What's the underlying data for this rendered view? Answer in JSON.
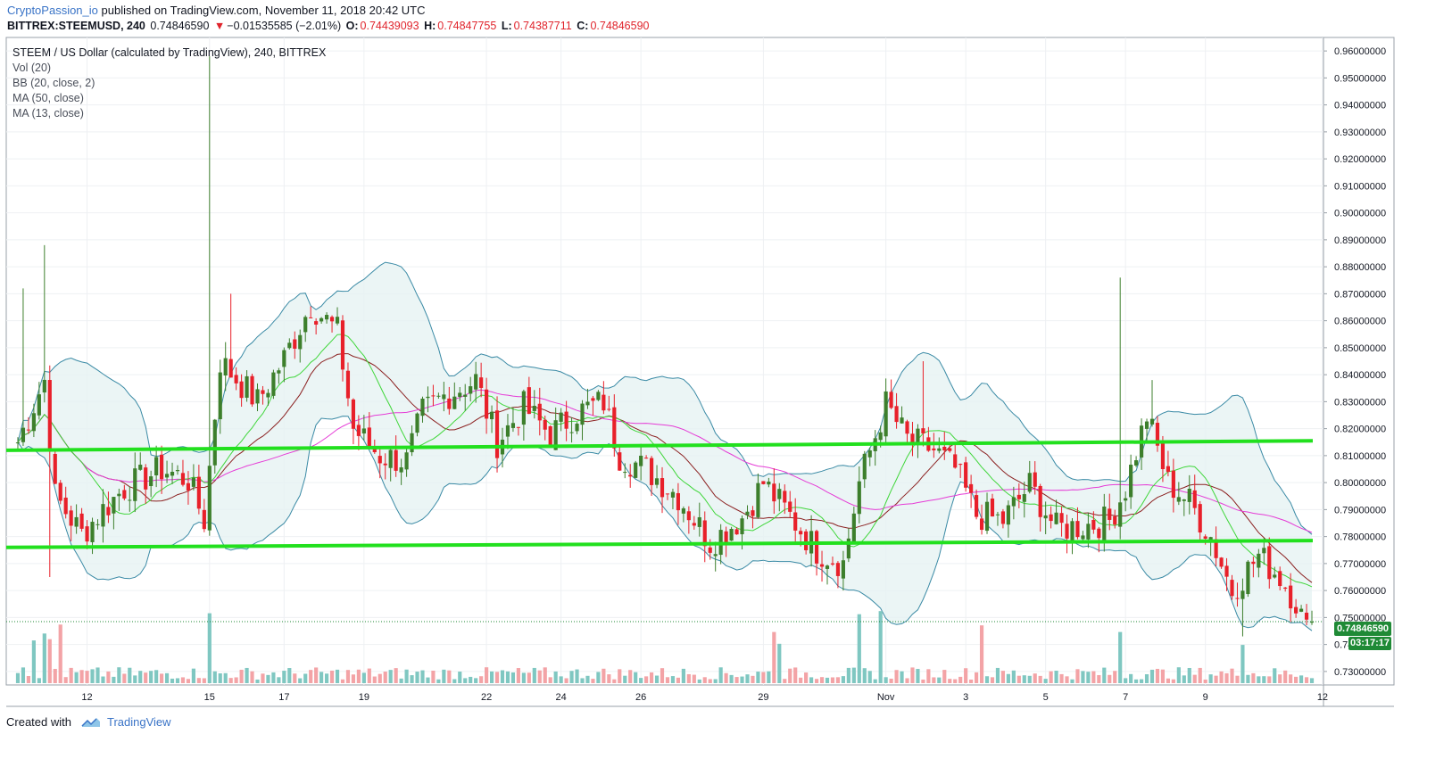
{
  "header": {
    "author": "CryptoPassion_io",
    "published_text": " published on TradingView.com, November 11, 2018 20:42 UTC",
    "symbol": "BITTREX:STEEMUSD, 240",
    "last": "0.74846590",
    "change_arrow": "▼",
    "change": "−0.01535585 (−2.01%)",
    "o_label": "O:",
    "o_value": "0.74439093",
    "h_label": "H:",
    "h_value": "0.74847755",
    "l_label": "L:",
    "l_value": "0.74387711",
    "c_label": "C:",
    "c_value": "0.74846590"
  },
  "legend": {
    "title": "STEEM / US Dollar (calculated by TradingView), 240, BITTREX",
    "items": [
      "Vol (20)",
      "BB (20, close, 2)",
      "MA (50, close)",
      "MA (13, close)"
    ]
  },
  "badges": {
    "price": "0.74846590",
    "countdown": "03:17:17"
  },
  "footer": {
    "created_with": "Created with",
    "brand": "TradingView"
  },
  "colors": {
    "up": "#3d7f2c",
    "down": "#e8202a",
    "vol_up": "#7fc7c1",
    "vol_down": "#f3a3a6",
    "bb_line": "#3a8aa5",
    "bb_fill": "#e6f2f2",
    "ma50": "#e53bd6",
    "ma13": "#3fd63a",
    "basis": "#8b2020",
    "support_line": "#22e01e"
  },
  "chart_data": {
    "type": "candlestick",
    "symbol": "BITTREX:STEEMUSD",
    "timeframe": "240",
    "y_range": [
      0.725,
      0.965
    ],
    "y_ticks": [
      "0.96000000",
      "0.95000000",
      "0.94000000",
      "0.93000000",
      "0.92000000",
      "0.91000000",
      "0.90000000",
      "0.89000000",
      "0.88000000",
      "0.87000000",
      "0.86000000",
      "0.85000000",
      "0.84000000",
      "0.83000000",
      "0.82000000",
      "0.81000000",
      "0.80000000",
      "0.79000000",
      "0.78000000",
      "0.77000000",
      "0.76000000",
      "0.75000000",
      "0.74000000",
      "0.73000000"
    ],
    "x_ticks": [
      {
        "label": "12",
        "bar": 13
      },
      {
        "label": "15",
        "bar": 36
      },
      {
        "label": "17",
        "bar": 50
      },
      {
        "label": "19",
        "bar": 65
      },
      {
        "label": "22",
        "bar": 88
      },
      {
        "label": "24",
        "bar": 102
      },
      {
        "label": "26",
        "bar": 117
      },
      {
        "label": "29",
        "bar": 140
      },
      {
        "label": "Nov",
        "bar": 163
      },
      {
        "label": "3",
        "bar": 178
      },
      {
        "label": "5",
        "bar": 193
      },
      {
        "label": "7",
        "bar": 208
      },
      {
        "label": "9",
        "bar": 223
      },
      {
        "label": "12",
        "bar": 245
      }
    ],
    "bars": 244,
    "key_points": [
      {
        "bar": 0,
        "close": 0.815
      },
      {
        "bar": 5,
        "close": 0.838
      },
      {
        "bar": 7,
        "close": 0.795
      },
      {
        "bar": 12,
        "close": 0.781
      },
      {
        "bar": 16,
        "close": 0.79
      },
      {
        "bar": 20,
        "close": 0.798
      },
      {
        "bar": 27,
        "close": 0.805
      },
      {
        "bar": 32,
        "close": 0.801
      },
      {
        "bar": 35,
        "close": 0.786
      },
      {
        "bar": 38,
        "close": 0.845
      },
      {
        "bar": 45,
        "close": 0.83
      },
      {
        "bar": 50,
        "close": 0.846
      },
      {
        "bar": 55,
        "close": 0.866
      },
      {
        "bar": 60,
        "close": 0.856
      },
      {
        "bar": 63,
        "close": 0.82
      },
      {
        "bar": 68,
        "close": 0.81
      },
      {
        "bar": 73,
        "close": 0.808
      },
      {
        "bar": 76,
        "close": 0.826
      },
      {
        "bar": 80,
        "close": 0.832
      },
      {
        "bar": 86,
        "close": 0.838
      },
      {
        "bar": 90,
        "close": 0.815
      },
      {
        "bar": 95,
        "close": 0.828
      },
      {
        "bar": 100,
        "close": 0.818
      },
      {
        "bar": 105,
        "close": 0.826
      },
      {
        "bar": 110,
        "close": 0.83
      },
      {
        "bar": 113,
        "close": 0.81
      },
      {
        "bar": 118,
        "close": 0.805
      },
      {
        "bar": 124,
        "close": 0.795
      },
      {
        "bar": 130,
        "close": 0.778
      },
      {
        "bar": 136,
        "close": 0.787
      },
      {
        "bar": 140,
        "close": 0.8
      },
      {
        "bar": 146,
        "close": 0.785
      },
      {
        "bar": 150,
        "close": 0.775
      },
      {
        "bar": 155,
        "close": 0.77
      },
      {
        "bar": 158,
        "close": 0.8
      },
      {
        "bar": 163,
        "close": 0.829
      },
      {
        "bar": 167,
        "close": 0.816
      },
      {
        "bar": 172,
        "close": 0.812
      },
      {
        "bar": 176,
        "close": 0.805
      },
      {
        "bar": 180,
        "close": 0.788
      },
      {
        "bar": 185,
        "close": 0.786
      },
      {
        "bar": 190,
        "close": 0.799
      },
      {
        "bar": 195,
        "close": 0.783
      },
      {
        "bar": 200,
        "close": 0.784
      },
      {
        "bar": 205,
        "close": 0.786
      },
      {
        "bar": 208,
        "close": 0.798
      },
      {
        "bar": 212,
        "close": 0.825
      },
      {
        "bar": 216,
        "close": 0.8
      },
      {
        "bar": 220,
        "close": 0.793
      },
      {
        "bar": 224,
        "close": 0.78
      },
      {
        "bar": 228,
        "close": 0.76
      },
      {
        "bar": 233,
        "close": 0.773
      },
      {
        "bar": 237,
        "close": 0.765
      },
      {
        "bar": 240,
        "close": 0.756
      },
      {
        "bar": 242,
        "close": 0.745
      },
      {
        "bar": 243,
        "close": 0.7485
      }
    ],
    "spikes": [
      {
        "bar": 1,
        "high": 0.872
      },
      {
        "bar": 5,
        "high": 0.888
      },
      {
        "bar": 6,
        "low": 0.765
      },
      {
        "bar": 36,
        "high": 0.958
      },
      {
        "bar": 40,
        "high": 0.87
      },
      {
        "bar": 170,
        "high": 0.845
      },
      {
        "bar": 207,
        "high": 0.876
      },
      {
        "bar": 213,
        "high": 0.838
      },
      {
        "bar": 230,
        "low": 0.743
      }
    ],
    "horizontal_lines": [
      {
        "name": "upper support",
        "start": 0.812,
        "end": 0.8155,
        "color": "#22e01e"
      },
      {
        "name": "lower support",
        "start": 0.776,
        "end": 0.7785,
        "color": "#22e01e"
      }
    ],
    "indicators": [
      "Vol (20)",
      "BB (20, close, 2)",
      "MA (50, close)",
      "MA (13, close)"
    ],
    "last_price": 0.7484659,
    "grid": true
  }
}
